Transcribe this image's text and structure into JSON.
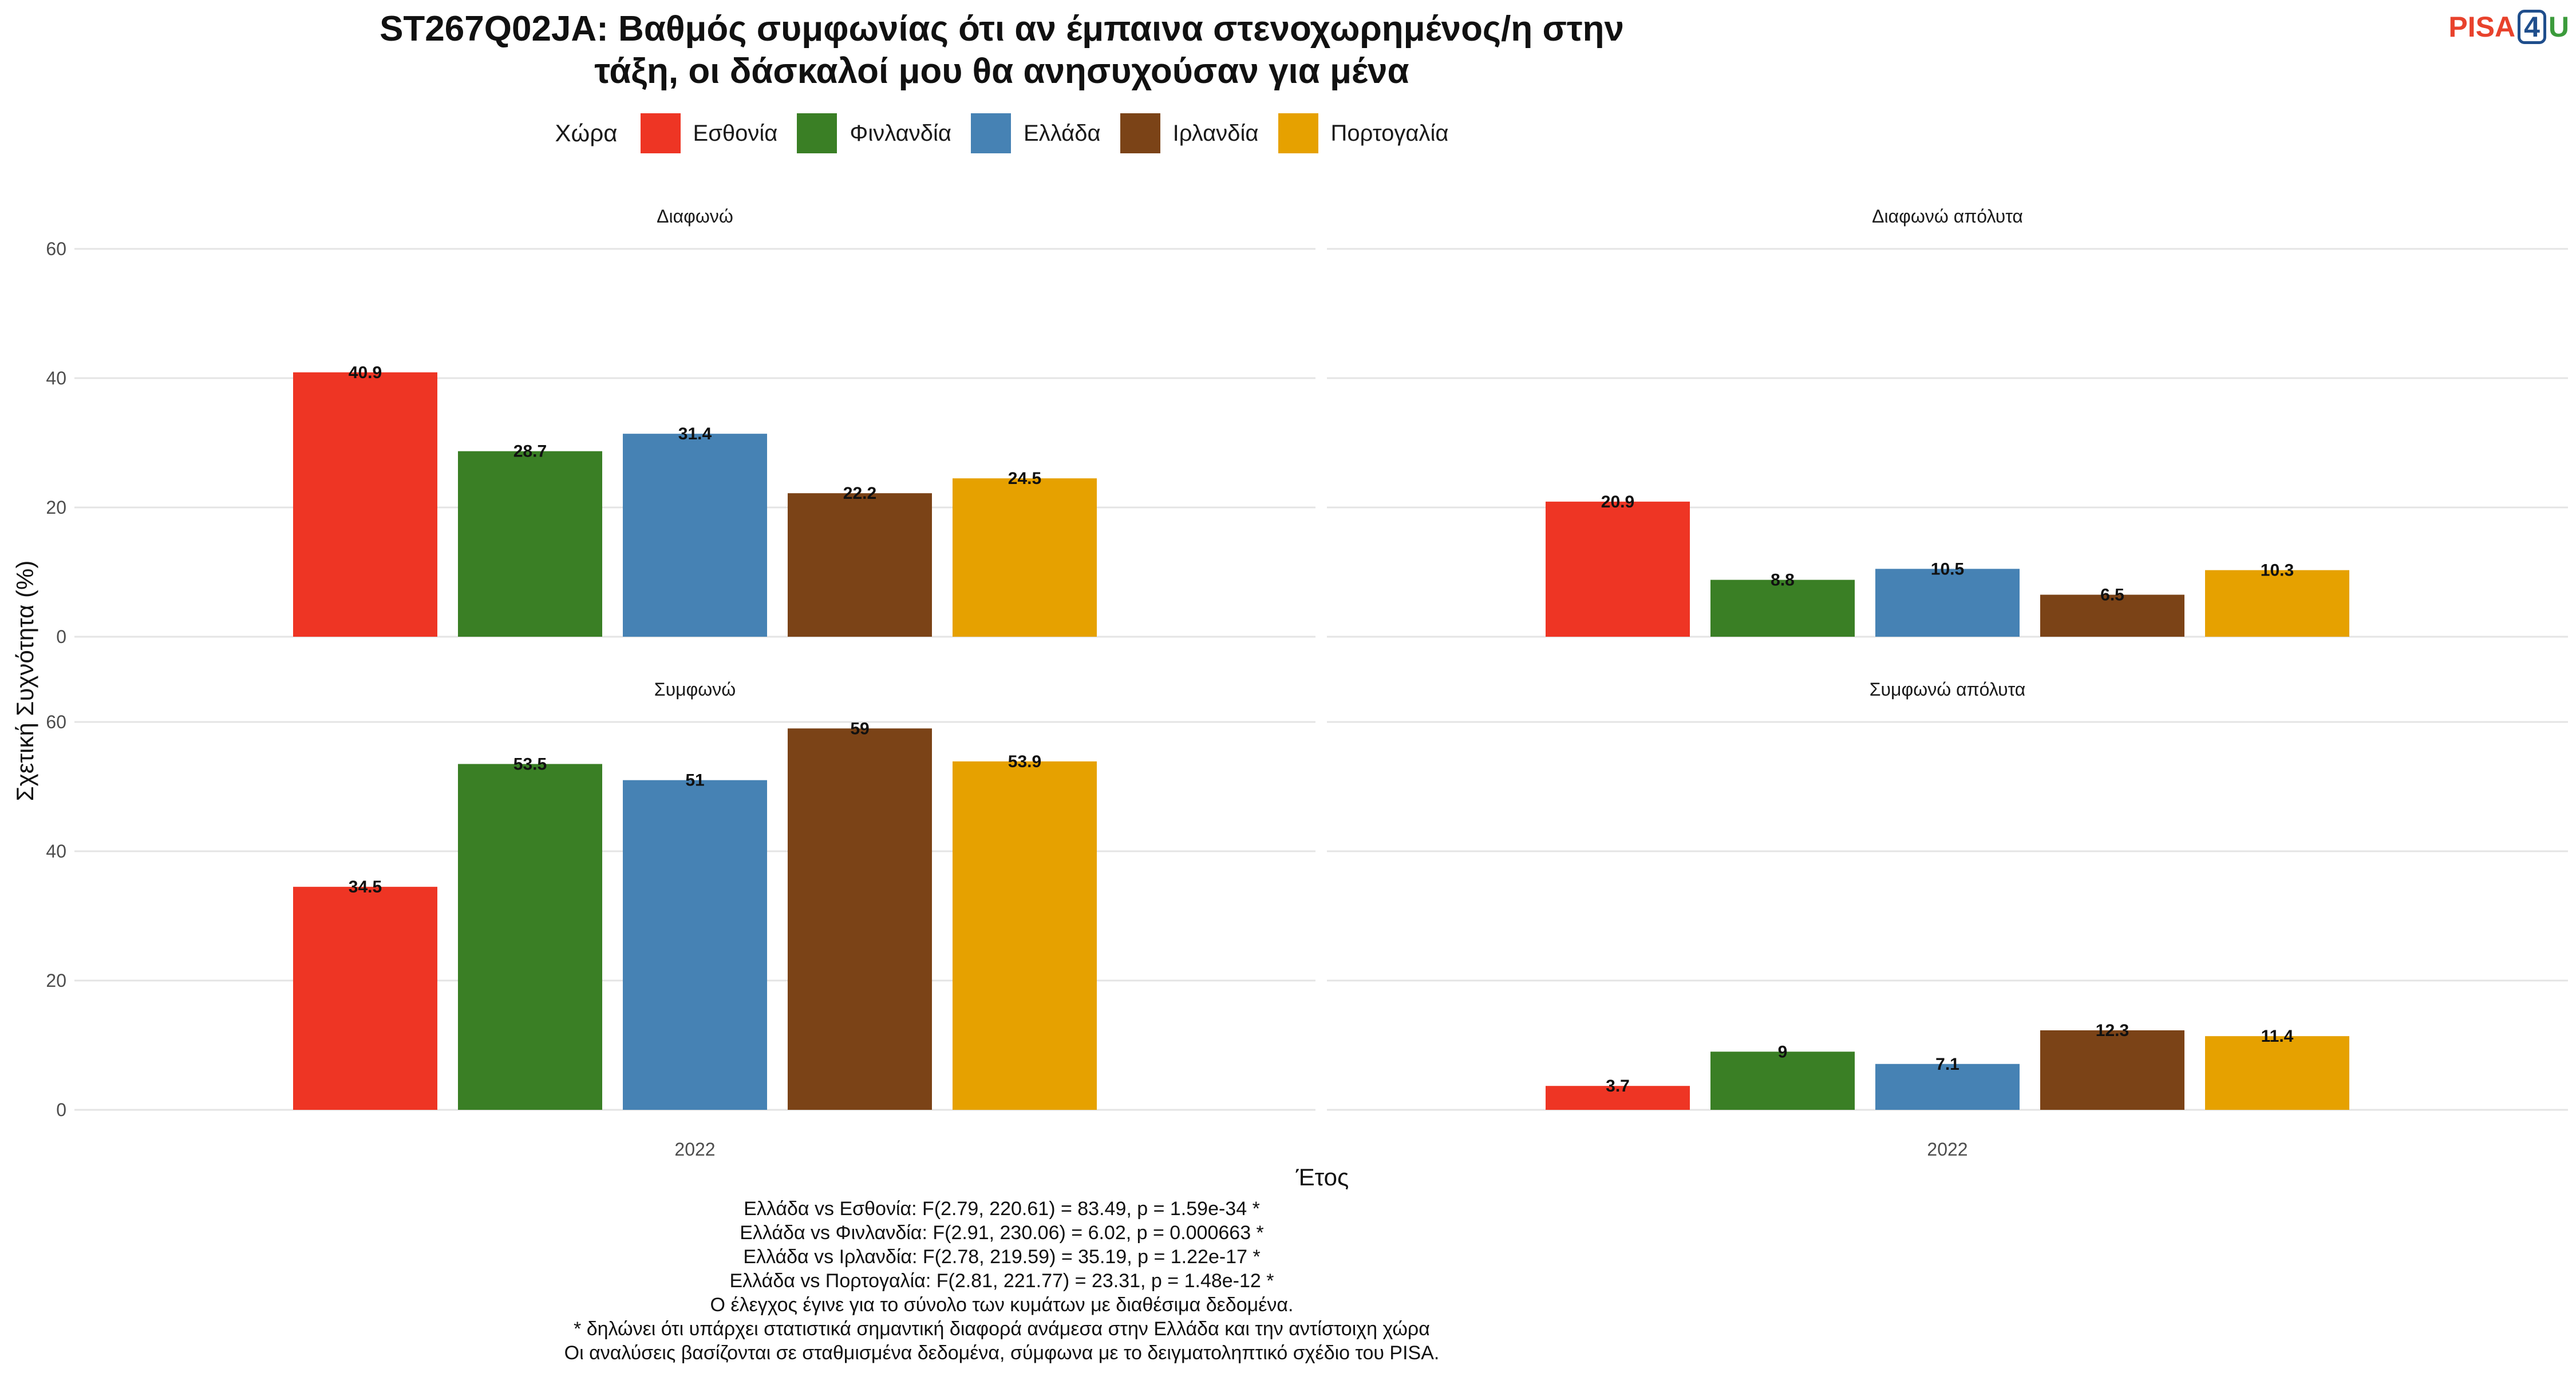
{
  "title_lines": [
    "ST267Q02JA: Βαθμός συμφωνίας ότι αν έμπαινα στενοχωρημένος/η στην",
    "τάξη, οι δάσκαλοί μου θα ανησυχούσαν για μένα"
  ],
  "logo": {
    "part1": "PISA",
    "part2": "4",
    "part3": "U"
  },
  "legend": {
    "title": "Χώρα",
    "entries": [
      {
        "label": "Εσθονία",
        "color": "#EE3524"
      },
      {
        "label": "Φινλανδία",
        "color": "#3A7F25"
      },
      {
        "label": "Ελλάδα",
        "color": "#4682B4"
      },
      {
        "label": "Ιρλανδία",
        "color": "#7B4317"
      },
      {
        "label": "Πορτογαλία",
        "color": "#E6A100"
      }
    ]
  },
  "chart_data": {
    "type": "bar",
    "xlabel": "Έτος",
    "ylabel": "Σχετική Συχνότητα (%)",
    "ylim": [
      0,
      60
    ],
    "yticks": [
      0,
      20,
      40,
      60
    ],
    "grid": true,
    "legend_position": "top",
    "categories": [
      "2022"
    ],
    "series_names": [
      "Εσθονία",
      "Φινλανδία",
      "Ελλάδα",
      "Ιρλανδία",
      "Πορτογαλία"
    ],
    "panels": [
      {
        "title": "Διαφωνώ",
        "category": "2022",
        "values": [
          40.9,
          28.7,
          31.4,
          22.2,
          24.5
        ],
        "labels": [
          "40.9",
          "28.7",
          "31.4",
          "22.2",
          "24.5"
        ]
      },
      {
        "title": "Διαφωνώ απόλυτα",
        "category": "2022",
        "values": [
          20.9,
          8.8,
          10.5,
          6.5,
          10.3
        ],
        "labels": [
          "20.9",
          "8.8",
          "10.5",
          "6.5",
          "10.3"
        ]
      },
      {
        "title": "Συμφωνώ",
        "category": "2022",
        "values": [
          34.5,
          53.5,
          51,
          59,
          53.9
        ],
        "labels": [
          "34.5",
          "53.5",
          "51",
          "59",
          "53.9"
        ]
      },
      {
        "title": "Συμφωνώ απόλυτα",
        "category": "2022",
        "values": [
          3.7,
          9,
          7.1,
          12.3,
          11.4
        ],
        "labels": [
          "3.7",
          "9",
          "7.1",
          "12.3",
          "11.4"
        ]
      }
    ]
  },
  "caption_lines": [
    "Ελλάδα vs Εσθονία: F(2.79, 220.61) = 83.49, p = 1.59e-34 *",
    "Ελλάδα vs Φινλανδία: F(2.91, 230.06) = 6.02, p = 0.000663 *",
    "Ελλάδα vs Ιρλανδία: F(2.78, 219.59) = 35.19, p = 1.22e-17 *",
    "Ελλάδα vs Πορτογαλία: F(2.81, 221.77) = 23.31, p = 1.48e-12 *",
    "Ο έλεγχος έγινε για το σύνολο των κυμάτων με διαθέσιμα δεδομένα.",
    "* δηλώνει ότι υπάρχει στατιστικά σημαντική διαφορά ανάμεσα στην Ελλάδα και την αντίστοιχη χώρα",
    "Οι αναλύσεις βασίζονται σε σταθμισμένα δεδομένα, σύμφωνα με το δειγματοληπτικό σχέδιο του PISA."
  ]
}
